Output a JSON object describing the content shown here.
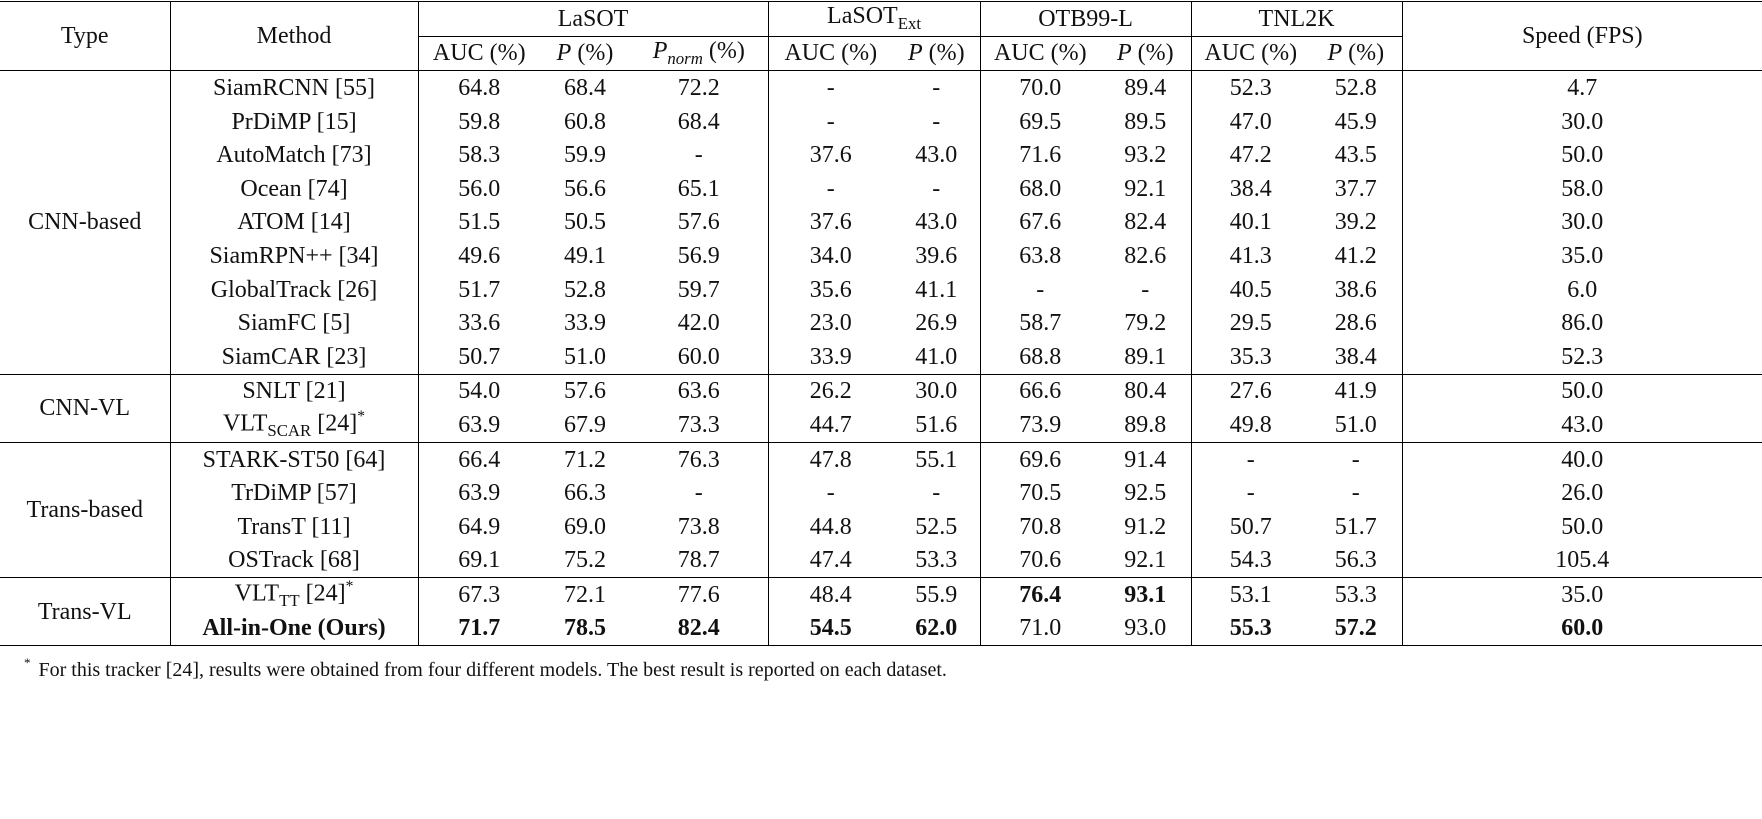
{
  "table": {
    "type_header": "Type",
    "method_header": "Method",
    "datasets": [
      {
        "name": "LaSOT",
        "metrics": [
          "AUC (%)",
          [
            {
              "text": "P",
              "style": "i"
            },
            {
              "text": " (%)"
            }
          ],
          [
            {
              "text": "P",
              "style": "i"
            },
            {
              "text": "norm",
              "style": "sub-i"
            },
            {
              "text": " (%)"
            }
          ]
        ]
      },
      {
        "name": [
          {
            "text": "LaSOT"
          },
          {
            "text": "Ext",
            "style": "sub"
          }
        ],
        "metrics": [
          "AUC (%)",
          [
            {
              "text": "P",
              "style": "i"
            },
            {
              "text": " (%)"
            }
          ]
        ]
      },
      {
        "name": "OTB99-L",
        "metrics": [
          "AUC (%)",
          [
            {
              "text": "P",
              "style": "i"
            },
            {
              "text": " (%)"
            }
          ]
        ]
      },
      {
        "name": "TNL2K",
        "metrics": [
          "AUC (%)",
          [
            {
              "text": "P",
              "style": "i"
            },
            {
              "text": " (%)"
            }
          ]
        ]
      }
    ],
    "speed_header": "Speed (FPS)",
    "groups": [
      {
        "type": "CNN-based",
        "rows": [
          {
            "method": "SiamRCNN [55]",
            "values": [
              "64.8",
              "68.4",
              "72.2",
              "-",
              "-",
              "70.0",
              "89.4",
              "52.3",
              "52.8",
              "4.7"
            ]
          },
          {
            "method": "PrDiMP [15]",
            "values": [
              "59.8",
              "60.8",
              "68.4",
              "-",
              "-",
              "69.5",
              "89.5",
              "47.0",
              "45.9",
              "30.0"
            ]
          },
          {
            "method": "AutoMatch [73]",
            "values": [
              "58.3",
              "59.9",
              "-",
              "37.6",
              "43.0",
              "71.6",
              "93.2",
              "47.2",
              "43.5",
              "50.0"
            ]
          },
          {
            "method": "Ocean [74]",
            "values": [
              "56.0",
              "56.6",
              "65.1",
              "-",
              "-",
              "68.0",
              "92.1",
              "38.4",
              "37.7",
              "58.0"
            ]
          },
          {
            "method": "ATOM [14]",
            "values": [
              "51.5",
              "50.5",
              "57.6",
              "37.6",
              "43.0",
              "67.6",
              "82.4",
              "40.1",
              "39.2",
              "30.0"
            ]
          },
          {
            "method": "SiamRPN++ [34]",
            "values": [
              "49.6",
              "49.1",
              "56.9",
              "34.0",
              "39.6",
              "63.8",
              "82.6",
              "41.3",
              "41.2",
              "35.0"
            ]
          },
          {
            "method": "GlobalTrack [26]",
            "values": [
              "51.7",
              "52.8",
              "59.7",
              "35.6",
              "41.1",
              "-",
              "-",
              "40.5",
              "38.6",
              "6.0"
            ]
          },
          {
            "method": "SiamFC [5]",
            "values": [
              "33.6",
              "33.9",
              "42.0",
              "23.0",
              "26.9",
              "58.7",
              "79.2",
              "29.5",
              "28.6",
              "86.0"
            ]
          },
          {
            "method": "SiamCAR [23]",
            "values": [
              "50.7",
              "51.0",
              "60.0",
              "33.9",
              "41.0",
              "68.8",
              "89.1",
              "35.3",
              "38.4",
              "52.3"
            ]
          }
        ]
      },
      {
        "type": "CNN-VL",
        "rows": [
          {
            "method": "SNLT [21]",
            "values": [
              "54.0",
              "57.6",
              "63.6",
              "26.2",
              "30.0",
              "66.6",
              "80.4",
              "27.6",
              "41.9",
              "50.0"
            ]
          },
          {
            "method": [
              {
                "text": "VLT"
              },
              {
                "text": "SCAR",
                "style": "sub"
              },
              {
                "text": " [24]"
              },
              {
                "text": "*",
                "style": "sup"
              }
            ],
            "values": [
              "63.9",
              "67.9",
              "73.3",
              "44.7",
              "51.6",
              "73.9",
              "89.8",
              "49.8",
              "51.0",
              "43.0"
            ]
          }
        ]
      },
      {
        "type": "Trans-based",
        "rows": [
          {
            "method": "STARK-ST50 [64]",
            "values": [
              "66.4",
              "71.2",
              "76.3",
              "47.8",
              "55.1",
              "69.6",
              "91.4",
              "-",
              "-",
              "40.0"
            ]
          },
          {
            "method": "TrDiMP [57]",
            "values": [
              "63.9",
              "66.3",
              "-",
              "-",
              "-",
              "70.5",
              "92.5",
              "-",
              "-",
              "26.0"
            ]
          },
          {
            "method": "TransT [11]",
            "values": [
              "64.9",
              "69.0",
              "73.8",
              "44.8",
              "52.5",
              "70.8",
              "91.2",
              "50.7",
              "51.7",
              "50.0"
            ]
          },
          {
            "method": "OSTrack [68]",
            "values": [
              "69.1",
              "75.2",
              "78.7",
              "47.4",
              "53.3",
              "70.6",
              "92.1",
              "54.3",
              "56.3",
              "105.4"
            ]
          }
        ]
      },
      {
        "type": "Trans-VL",
        "rows": [
          {
            "method": [
              {
                "text": "VLT"
              },
              {
                "text": "TT",
                "style": "sub"
              },
              {
                "text": " [24]"
              },
              {
                "text": "*",
                "style": "sup"
              }
            ],
            "values": [
              "67.3",
              "72.1",
              "77.6",
              "48.4",
              "55.9",
              "76.4",
              "93.1",
              "53.1",
              "53.3",
              "35.0"
            ],
            "bold_values": [
              5,
              6
            ]
          },
          {
            "method": "All-in-One (Ours)",
            "bold_method": true,
            "values": [
              "71.7",
              "78.5",
              "82.4",
              "54.5",
              "62.0",
              "71.0",
              "93.0",
              "55.3",
              "57.2",
              "60.0"
            ],
            "bold_values": [
              0,
              1,
              2,
              3,
              4,
              7,
              8,
              9
            ]
          }
        ]
      }
    ]
  },
  "footnote": {
    "mark": "*",
    "text": "For this tracker [24], results were obtained from four different models. The best result is reported on each dataset."
  }
}
